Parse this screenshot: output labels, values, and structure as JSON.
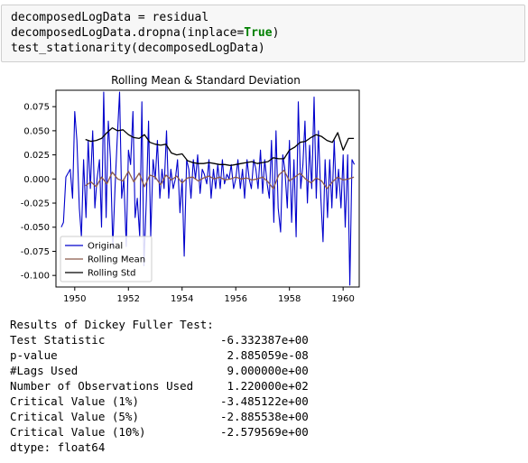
{
  "code": {
    "line1_var": "decomposedLogData",
    "line1_op": " = residual",
    "line2_pre": "decomposedLogData.dropna(inplace=",
    "line2_kw": "True",
    "line2_post": ")",
    "line3": "test_stationarity(decomposedLogData)"
  },
  "chart_data": {
    "type": "line",
    "title": "Rolling Mean & Standard Deviation",
    "xlabel": "",
    "ylabel": "",
    "xlim": [
      1949.3,
      1960.6
    ],
    "ylim": [
      -0.112,
      0.092
    ],
    "xticks": [
      "1950",
      "1952",
      "1954",
      "1956",
      "1958",
      "1960"
    ],
    "xtick_values": [
      1950,
      1952,
      1954,
      1956,
      1958,
      1960
    ],
    "yticks": [
      "0.075",
      "0.050",
      "0.025",
      "0.000",
      "-0.025",
      "-0.050",
      "-0.075",
      "-0.100"
    ],
    "ytick_values": [
      0.075,
      0.05,
      0.025,
      0.0,
      -0.025,
      -0.05,
      -0.075,
      -0.1
    ],
    "grid": false,
    "legend_position": "lower-left",
    "series": [
      {
        "name": "Original",
        "color": "#0000cc",
        "x": [
          1949.5,
          1949.58,
          1949.67,
          1949.75,
          1949.83,
          1949.92,
          1950.0,
          1950.08,
          1950.17,
          1950.25,
          1950.33,
          1950.42,
          1950.5,
          1950.58,
          1950.67,
          1950.75,
          1950.83,
          1950.92,
          1951.0,
          1951.08,
          1951.17,
          1951.25,
          1951.33,
          1951.42,
          1951.5,
          1951.58,
          1951.67,
          1951.75,
          1951.83,
          1951.92,
          1952.0,
          1952.08,
          1952.17,
          1952.25,
          1952.33,
          1952.42,
          1952.5,
          1952.58,
          1952.67,
          1952.75,
          1952.83,
          1952.92,
          1953.0,
          1953.08,
          1953.17,
          1953.25,
          1953.33,
          1953.42,
          1953.5,
          1953.58,
          1953.67,
          1953.75,
          1953.83,
          1953.92,
          1954.0,
          1954.08,
          1954.17,
          1954.25,
          1954.33,
          1954.42,
          1954.5,
          1954.58,
          1954.67,
          1954.75,
          1954.83,
          1954.92,
          1955.0,
          1955.08,
          1955.17,
          1955.25,
          1955.33,
          1955.42,
          1955.5,
          1955.58,
          1955.67,
          1955.75,
          1955.83,
          1955.92,
          1956.0,
          1956.08,
          1956.17,
          1956.25,
          1956.33,
          1956.42,
          1956.5,
          1956.58,
          1956.67,
          1956.75,
          1956.83,
          1956.92,
          1957.0,
          1957.08,
          1957.17,
          1957.25,
          1957.33,
          1957.42,
          1957.5,
          1957.58,
          1957.67,
          1957.75,
          1957.83,
          1957.92,
          1958.0,
          1958.08,
          1958.17,
          1958.25,
          1958.33,
          1958.42,
          1958.5,
          1958.58,
          1958.67,
          1958.75,
          1958.83,
          1958.92,
          1959.0,
          1959.08,
          1959.17,
          1959.25,
          1959.33,
          1959.42,
          1959.5,
          1959.58,
          1959.67,
          1959.75,
          1959.83,
          1959.92,
          1960.0,
          1960.08,
          1960.17,
          1960.25,
          1960.33,
          1960.42
        ],
        "values": [
          -0.05,
          -0.045,
          0.002,
          0.006,
          0.01,
          -0.02,
          0.07,
          0.04,
          -0.03,
          -0.06,
          0.02,
          -0.04,
          0.04,
          -0.01,
          0.05,
          -0.03,
          0.0,
          0.02,
          -0.05,
          0.09,
          -0.04,
          0.06,
          0.02,
          -0.07,
          -0.01,
          0.04,
          0.09,
          -0.02,
          0.0,
          -0.07,
          0.03,
          0.015,
          0.07,
          -0.04,
          -0.02,
          -0.06,
          0.08,
          -0.09,
          -0.02,
          0.06,
          -0.06,
          0.02,
          0.0,
          0.04,
          -0.02,
          0.01,
          -0.01,
          0.05,
          -0.02,
          0.01,
          -0.01,
          0.0,
          0.02,
          -0.035,
          0.0,
          -0.08,
          0.02,
          0.01,
          -0.02,
          0.02,
          0.0,
          0.025,
          -0.015,
          0.01,
          0.005,
          -0.005,
          0.02,
          -0.02,
          0.01,
          -0.01,
          0.015,
          -0.01,
          0.02,
          -0.005,
          0.005,
          0.0,
          0.015,
          -0.01,
          0.0,
          0.02,
          -0.01,
          0.01,
          -0.02,
          0.02,
          0.0,
          -0.01,
          0.02,
          0.01,
          -0.01,
          0.03,
          -0.015,
          0.02,
          -0.005,
          -0.02,
          0.04,
          -0.045,
          0.05,
          -0.03,
          -0.055,
          0.025,
          0.01,
          -0.03,
          0.04,
          -0.045,
          0.02,
          -0.06,
          0.08,
          -0.01,
          0.015,
          0.06,
          -0.025,
          0.035,
          -0.01,
          0.085,
          -0.02,
          0.05,
          -0.02,
          -0.065,
          0.02,
          -0.04,
          0.02,
          -0.03,
          0.04,
          -0.02,
          0.01,
          -0.03,
          0.025,
          -0.05,
          0.025,
          -0.11,
          0.02,
          0.015
        ],
        "line_width": 1.1
      },
      {
        "name": "Rolling Mean",
        "color": "#8b5a4a",
        "x": [
          1950.4,
          1950.6,
          1950.8,
          1951.0,
          1951.2,
          1951.4,
          1951.6,
          1951.8,
          1952.0,
          1952.2,
          1952.4,
          1952.6,
          1952.8,
          1953.0,
          1953.2,
          1953.4,
          1953.6,
          1953.8,
          1954.0,
          1954.2,
          1954.4,
          1954.6,
          1954.8,
          1955.0,
          1955.2,
          1955.4,
          1955.6,
          1955.8,
          1956.0,
          1956.2,
          1956.4,
          1956.6,
          1956.8,
          1957.0,
          1957.2,
          1957.4,
          1957.6,
          1957.8,
          1958.0,
          1958.2,
          1958.4,
          1958.6,
          1958.8,
          1959.0,
          1959.2,
          1959.4,
          1959.6,
          1959.8,
          1960.0,
          1960.2,
          1960.4
        ],
        "values": [
          -0.007,
          -0.003,
          -0.008,
          0.002,
          -0.005,
          0.007,
          0.0,
          -0.002,
          0.008,
          -0.003,
          0.006,
          -0.008,
          0.004,
          0.002,
          -0.006,
          0.004,
          -0.001,
          0.003,
          -0.004,
          0.001,
          0.002,
          -0.002,
          0.001,
          0.003,
          0.0,
          0.002,
          -0.001,
          0.0,
          0.002,
          0.0,
          0.001,
          -0.001,
          0.0,
          0.002,
          -0.003,
          -0.01,
          0.004,
          0.009,
          -0.002,
          0.002,
          0.006,
          0.0,
          -0.004,
          0.001,
          -0.002,
          -0.01,
          -0.003,
          0.002,
          -0.001,
          0.0,
          0.002
        ],
        "line_width": 1.3
      },
      {
        "name": "Rolling Std",
        "color": "#000000",
        "x": [
          1950.4,
          1950.6,
          1950.8,
          1951.0,
          1951.2,
          1951.4,
          1951.6,
          1951.8,
          1952.0,
          1952.2,
          1952.4,
          1952.6,
          1952.8,
          1953.0,
          1953.2,
          1953.4,
          1953.6,
          1953.8,
          1954.0,
          1954.2,
          1954.4,
          1954.6,
          1954.8,
          1955.0,
          1955.2,
          1955.4,
          1955.6,
          1955.8,
          1956.0,
          1956.2,
          1956.4,
          1956.6,
          1956.8,
          1957.0,
          1957.2,
          1957.4,
          1957.6,
          1957.8,
          1958.0,
          1958.2,
          1958.4,
          1958.6,
          1958.8,
          1959.0,
          1959.2,
          1959.4,
          1959.6,
          1959.8,
          1960.0,
          1960.2,
          1960.4
        ],
        "values": [
          0.041,
          0.039,
          0.04,
          0.042,
          0.048,
          0.053,
          0.05,
          0.051,
          0.046,
          0.043,
          0.042,
          0.046,
          0.038,
          0.036,
          0.035,
          0.036,
          0.027,
          0.025,
          0.026,
          0.019,
          0.017,
          0.016,
          0.016,
          0.017,
          0.016,
          0.015,
          0.015,
          0.014,
          0.015,
          0.016,
          0.017,
          0.018,
          0.016,
          0.017,
          0.018,
          0.022,
          0.021,
          0.021,
          0.03,
          0.033,
          0.038,
          0.039,
          0.043,
          0.046,
          0.044,
          0.04,
          0.038,
          0.048,
          0.03,
          0.042,
          0.042
        ],
        "line_width": 1.3
      }
    ]
  },
  "output": {
    "header": "Results of Dickey Fuller Test:",
    "rows": [
      {
        "label": "Test Statistic",
        "value": "-6.332387e+00"
      },
      {
        "label": "p-value",
        "value": " 2.885059e-08"
      },
      {
        "label": "#Lags Used",
        "value": " 9.000000e+00"
      },
      {
        "label": "Number of Observations Used",
        "value": " 1.220000e+02"
      },
      {
        "label": "Critical Value (1%)",
        "value": "-3.485122e+00"
      },
      {
        "label": "Critical Value (5%)",
        "value": "-2.885538e+00"
      },
      {
        "label": "Critical Value (10%)",
        "value": "-2.579569e+00"
      }
    ],
    "dtype": "dtype: float64"
  }
}
